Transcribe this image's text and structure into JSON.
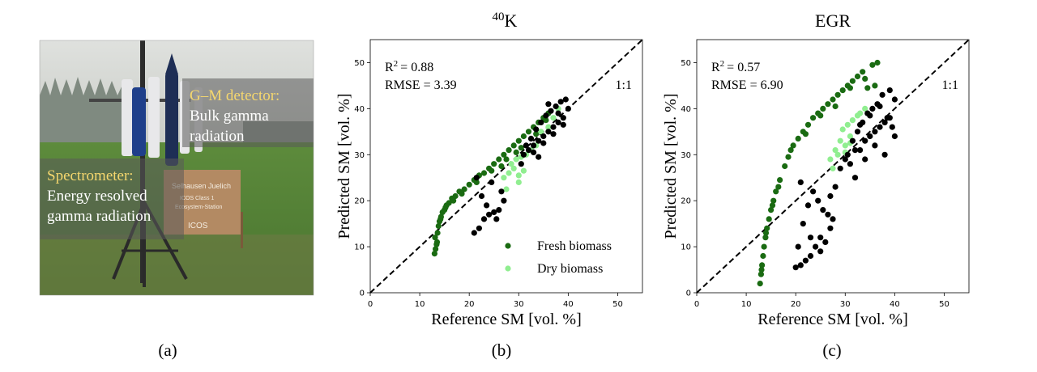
{
  "panel_a": {
    "caption": "(a)",
    "gm_title": "G–M detector:",
    "gm_body": [
      "Bulk gamma",
      "radiation"
    ],
    "spec_title": "Spectrometer:",
    "spec_body": [
      "Energy resolved",
      "gamma radiation"
    ],
    "sign_lines": [
      "Selhausen Juelich",
      "ICOS Class 1",
      "Ecosystem-Station",
      "ICOS"
    ],
    "label_color": "#f5d76e"
  },
  "colors": {
    "fresh": "#1a6b12",
    "dry": "#90ee90",
    "reference_points": "#000000"
  },
  "chart_data": [
    {
      "type": "scatter",
      "title_sup": "40",
      "title_main": "K",
      "caption": "(b)",
      "xlabel": "Reference SM [vol. %]",
      "ylabel": "Predicted SM [vol. %]",
      "xlim": [
        0,
        55
      ],
      "ylim": [
        0,
        55
      ],
      "xticks": [
        0,
        10,
        20,
        30,
        40,
        50
      ],
      "yticks": [
        0,
        10,
        20,
        30,
        40,
        50
      ],
      "grid": false,
      "r2_label": "R",
      "r2_sup": "2",
      "r2_value": "= 0.88",
      "rmse_text": "RMSE = 3.39",
      "one_to_one_label": "1:1",
      "legend": {
        "position": "bottom-right",
        "entries": [
          "Fresh biomass",
          "Dry biomass"
        ]
      },
      "series": [
        {
          "name": "Fresh biomass",
          "color": "#1a6b12",
          "x": [
            13.0,
            13.2,
            13.4,
            13.1,
            13.6,
            13.8,
            14.0,
            14.3,
            14.6,
            15.0,
            15.4,
            15.9,
            16.5,
            17.2,
            18.0,
            19.0,
            20.0,
            21.0,
            22.0,
            23.0,
            24.0,
            25.0,
            26.0,
            27.0,
            28.0,
            29.0,
            30.0,
            31.0,
            32.0,
            33.0,
            34.0,
            35.0,
            36.0,
            13.5,
            14.2,
            15.2,
            16.8,
            18.5,
            21.5,
            24.5,
            27.5,
            30.5,
            33.5,
            35.5,
            26.5,
            29.5
          ],
          "y": [
            8.5,
            9.5,
            10.5,
            12.0,
            13.0,
            14.5,
            15.5,
            16.5,
            17.5,
            18.0,
            19.0,
            19.5,
            20.5,
            21.0,
            22.0,
            22.5,
            23.5,
            24.5,
            25.5,
            26.0,
            27.0,
            28.0,
            29.0,
            30.0,
            31.0,
            32.0,
            33.0,
            34.0,
            35.0,
            36.0,
            37.0,
            38.0,
            39.0,
            11.0,
            16.0,
            18.5,
            20.0,
            21.5,
            24.0,
            26.5,
            29.0,
            31.5,
            34.5,
            37.5,
            27.5,
            30.5
          ]
        },
        {
          "name": "Dry biomass",
          "color": "#90ee90",
          "x": [
            27.0,
            28.0,
            29.0,
            30.0,
            31.0,
            28.5,
            29.5,
            30.5,
            31.5,
            32.5,
            33.5,
            34.5,
            36.0,
            37.0,
            38.0,
            27.5,
            30.0
          ],
          "y": [
            25.0,
            26.0,
            27.0,
            25.5,
            26.5,
            28.0,
            29.0,
            29.5,
            30.0,
            31.0,
            32.0,
            35.0,
            36.0,
            38.0,
            40.0,
            22.5,
            24.0
          ]
        },
        {
          "name": "",
          "color": "#000000",
          "x": [
            21.0,
            22.0,
            23.0,
            24.0,
            25.0,
            26.0,
            27.0,
            21.5,
            23.5,
            25.5,
            26.5,
            24.5,
            22.5,
            32.0,
            33.0,
            34.0,
            35.0,
            36.0,
            37.0,
            38.0,
            39.0,
            40.0,
            31.0,
            32.5,
            33.5,
            34.5,
            35.5,
            36.5,
            37.5,
            38.5,
            39.5,
            33.0,
            35.0,
            37.0,
            39.0,
            36.0,
            38.0,
            34.0,
            30.5,
            31.5
          ],
          "y": [
            13.0,
            14.0,
            16.0,
            17.0,
            17.5,
            18.0,
            20.0,
            25.0,
            19.0,
            16.0,
            22.0,
            24.0,
            21.0,
            31.0,
            32.0,
            33.0,
            34.0,
            35.0,
            36.0,
            37.0,
            38.0,
            40.0,
            30.0,
            33.5,
            35.5,
            37.0,
            38.5,
            39.5,
            40.5,
            41.5,
            42.0,
            30.5,
            32.5,
            34.5,
            36.5,
            41.0,
            39.0,
            29.5,
            28.0,
            32.0
          ]
        }
      ]
    },
    {
      "type": "scatter",
      "title_main": "EGR",
      "caption": "(c)",
      "xlabel": "Reference SM [vol. %]",
      "ylabel": "Predicted SM [vol. %]",
      "xlim": [
        0,
        55
      ],
      "ylim": [
        0,
        55
      ],
      "xticks": [
        0,
        10,
        20,
        30,
        40,
        50
      ],
      "yticks": [
        0,
        10,
        20,
        30,
        40,
        50
      ],
      "grid": false,
      "r2_label": "R",
      "r2_sup": "2",
      "r2_value": "= 0.57",
      "rmse_text": "RMSE = 6.90",
      "one_to_one_label": "1:1",
      "series": [
        {
          "name": "Fresh biomass",
          "color": "#1a6b12",
          "x": [
            12.8,
            13.0,
            13.2,
            13.4,
            13.6,
            13.9,
            14.2,
            14.6,
            15.0,
            15.5,
            16.0,
            16.8,
            17.8,
            18.5,
            19.5,
            20.5,
            21.5,
            22.5,
            23.5,
            24.5,
            25.5,
            26.5,
            27.5,
            28.5,
            29.5,
            30.5,
            31.5,
            32.5,
            33.5,
            34.5,
            35.5,
            36.0,
            13.1,
            14.0,
            15.3,
            16.5,
            19.0,
            22.0,
            25.0,
            28.0,
            31.0,
            34.0,
            36.5
          ],
          "y": [
            2.0,
            4.0,
            6.0,
            8.0,
            10.0,
            12.0,
            14.0,
            16.0,
            18.0,
            20.0,
            22.0,
            24.5,
            27.5,
            29.5,
            32.0,
            33.5,
            35.0,
            36.5,
            38.0,
            39.0,
            40.0,
            41.0,
            42.0,
            43.0,
            44.0,
            45.0,
            46.0,
            47.0,
            48.0,
            44.5,
            49.5,
            45.0,
            5.0,
            13.0,
            19.0,
            23.0,
            31.0,
            34.5,
            38.5,
            40.5,
            44.5,
            46.5,
            50.0
          ]
        },
        {
          "name": "Dry biomass",
          "color": "#90ee90",
          "x": [
            27.0,
            28.0,
            29.0,
            30.0,
            31.0,
            29.5,
            30.5,
            31.5,
            32.5,
            33.0,
            34.0,
            27.5,
            28.5,
            30.0,
            31.0
          ],
          "y": [
            29.0,
            31.0,
            33.0,
            32.0,
            34.0,
            35.5,
            36.5,
            37.5,
            38.5,
            39.0,
            40.0,
            27.0,
            30.0,
            30.5,
            32.5
          ]
        },
        {
          "name": "",
          "color": "#000000",
          "x": [
            20.0,
            21.0,
            22.0,
            23.0,
            24.0,
            25.0,
            26.0,
            27.0,
            20.5,
            21.5,
            22.5,
            23.5,
            24.5,
            25.5,
            26.5,
            27.5,
            21.0,
            23.0,
            25.0,
            27.0,
            28.0,
            29.0,
            30.0,
            31.0,
            32.0,
            33.0,
            34.0,
            35.0,
            36.0,
            37.0,
            38.0,
            39.0,
            40.0,
            31.5,
            32.5,
            33.5,
            34.5,
            35.5,
            36.5,
            37.5,
            38.5,
            39.5,
            30.5,
            32.0,
            34.0,
            36.0,
            38.0,
            40.0,
            33.0,
            35.0,
            37.0,
            39.0
          ],
          "y": [
            5.5,
            6.0,
            7.0,
            8.0,
            10.0,
            12.0,
            11.0,
            14.0,
            10.0,
            15.0,
            19.0,
            22.0,
            20.0,
            18.0,
            17.0,
            16.0,
            24.0,
            12.0,
            9.0,
            21.0,
            23.0,
            27.0,
            29.0,
            28.0,
            25.0,
            31.0,
            33.0,
            34.0,
            35.0,
            36.0,
            37.0,
            38.0,
            42.0,
            33.0,
            35.0,
            37.0,
            39.0,
            40.0,
            41.0,
            43.0,
            38.0,
            36.0,
            30.0,
            31.0,
            29.0,
            32.0,
            30.0,
            34.0,
            36.5,
            38.5,
            40.5,
            44.0
          ]
        }
      ]
    }
  ]
}
